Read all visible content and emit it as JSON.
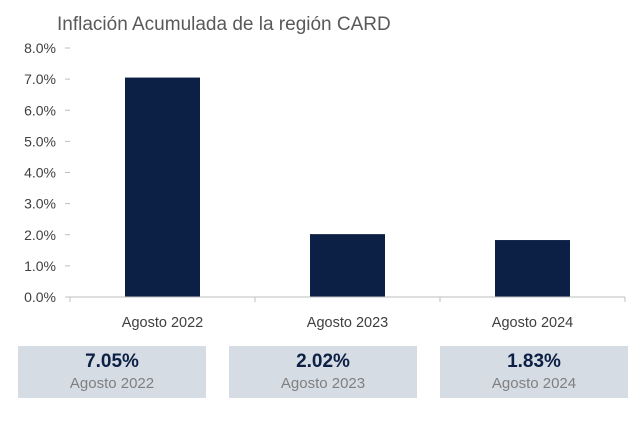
{
  "chart_data": {
    "type": "bar",
    "title": "Inflación Acumulada de la región CARD",
    "categories": [
      "Agosto 2022",
      "Agosto 2023",
      "Agosto 2024"
    ],
    "values": [
      7.05,
      2.02,
      1.83
    ],
    "ylim": [
      0,
      8
    ],
    "yticks": [
      "0.0%",
      "1.0%",
      "2.0%",
      "3.0%",
      "4.0%",
      "5.0%",
      "6.0%",
      "7.0%",
      "8.0%"
    ],
    "grid": false,
    "bar_color": "#0c1f45"
  },
  "summary": [
    {
      "value": "7.05%",
      "label": "Agosto 2022"
    },
    {
      "value": "2.02%",
      "label": "Agosto 2023"
    },
    {
      "value": "1.83%",
      "label": "Agosto 2024"
    }
  ],
  "colors": {
    "bar": "#0c1f45",
    "summary_bg": "#d6dce4",
    "summary_value": "#0c1f45",
    "summary_label": "#7f7f7f"
  }
}
